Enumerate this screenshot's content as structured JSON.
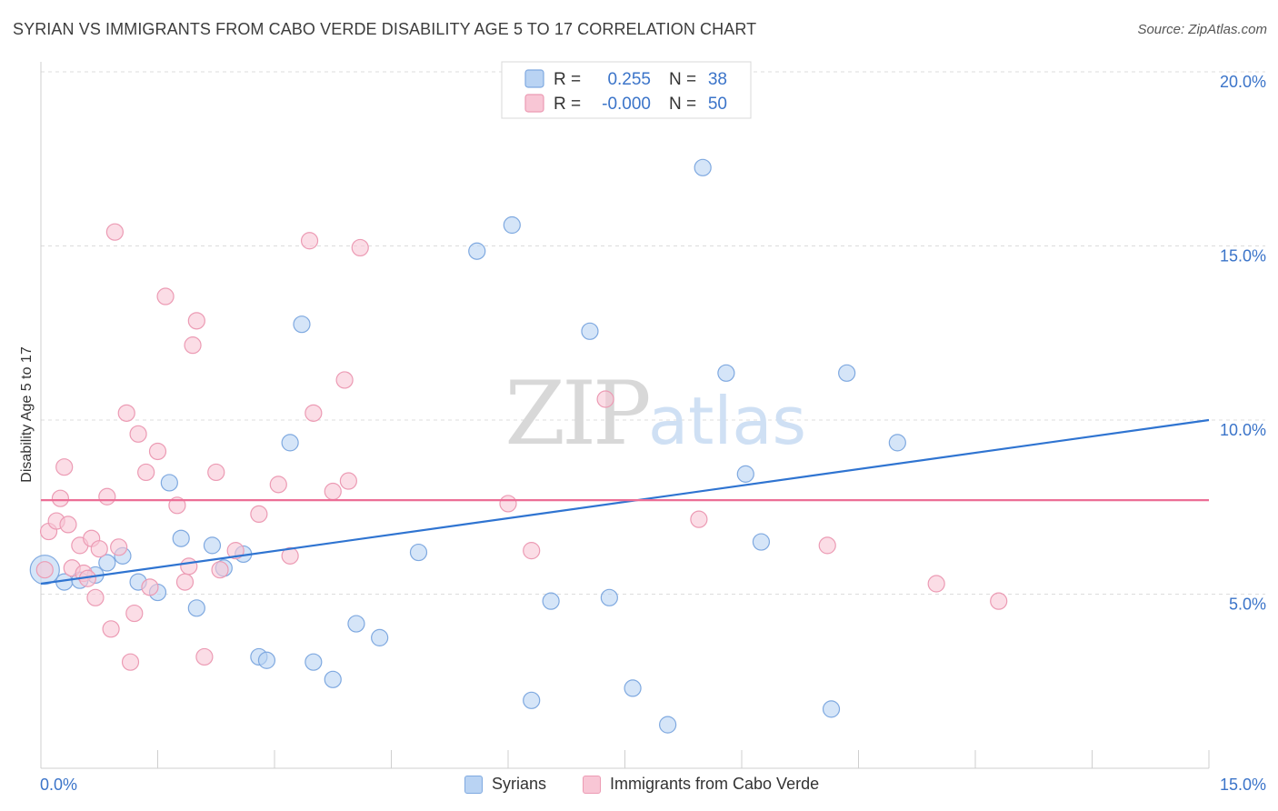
{
  "title": "SYRIAN VS IMMIGRANTS FROM CABO VERDE DISABILITY AGE 5 TO 17 CORRELATION CHART",
  "source": "Source: ZipAtlas.com",
  "watermark": {
    "zip": "ZIP",
    "atlas": "atlas"
  },
  "colors": {
    "blue_fill": "#b9d3f3",
    "blue_edge": "#7fa9e0",
    "blue_line": "#2f74d1",
    "pink_fill": "#f8c6d5",
    "pink_edge": "#ec9bb4",
    "pink_line": "#ec6e96",
    "axis_text": "#3b74c9",
    "grid": "#dcdcdc"
  },
  "legend_top": {
    "rows": [
      {
        "r_label": "R = ",
        "r_value": "0.255",
        "n_label": "N = ",
        "n_value": "38"
      },
      {
        "r_label": "R = ",
        "r_value": "-0.000",
        "n_label": "N = ",
        "n_value": "50"
      }
    ]
  },
  "chart_data": {
    "type": "scatter",
    "title": "SYRIAN VS IMMIGRANTS FROM CABO VERDE DISABILITY AGE 5 TO 17 CORRELATION CHART",
    "xlabel": "",
    "ylabel": "Disability Age 5 to 17",
    "xlim": [
      0,
      15
    ],
    "ylim": [
      0,
      20
    ],
    "x_tick_labels": [
      "0.0%",
      "15.0%"
    ],
    "y_ticks": [
      5,
      10,
      15,
      20
    ],
    "y_tick_labels": [
      "5.0%",
      "10.0%",
      "15.0%",
      "20.0%"
    ],
    "grid": "horizontal dashed",
    "series": [
      {
        "name": "Syrians",
        "r": 0.255,
        "n": 38,
        "trend": {
          "x": [
            0,
            15
          ],
          "y": [
            5.3,
            10.0
          ]
        },
        "points": [
          [
            0.05,
            5.7,
            16
          ],
          [
            0.3,
            5.35,
            9
          ],
          [
            0.5,
            5.4,
            9
          ],
          [
            0.7,
            5.55,
            9
          ],
          [
            0.85,
            5.9,
            9
          ],
          [
            1.05,
            6.1,
            9
          ],
          [
            1.25,
            5.35,
            9
          ],
          [
            1.5,
            5.05,
            9
          ],
          [
            1.65,
            8.2,
            9
          ],
          [
            1.8,
            6.6,
            9
          ],
          [
            2.0,
            4.6,
            9
          ],
          [
            2.2,
            6.4,
            9
          ],
          [
            2.35,
            5.75,
            9
          ],
          [
            2.6,
            6.15,
            9
          ],
          [
            2.8,
            3.2,
            9
          ],
          [
            2.9,
            3.1,
            9
          ],
          [
            3.2,
            9.35,
            9
          ],
          [
            3.35,
            12.75,
            9
          ],
          [
            3.5,
            3.05,
            9
          ],
          [
            3.75,
            2.55,
            9
          ],
          [
            4.05,
            4.15,
            9
          ],
          [
            4.35,
            3.75,
            9
          ],
          [
            4.85,
            6.2,
            9
          ],
          [
            5.6,
            14.85,
            9
          ],
          [
            6.05,
            15.6,
            9
          ],
          [
            6.3,
            1.95,
            9
          ],
          [
            6.55,
            4.8,
            9
          ],
          [
            7.05,
            12.55,
            9
          ],
          [
            7.3,
            4.9,
            9
          ],
          [
            7.6,
            2.3,
            9
          ],
          [
            8.05,
            1.25,
            9
          ],
          [
            8.5,
            17.25,
            9
          ],
          [
            8.8,
            11.35,
            9
          ],
          [
            9.05,
            8.45,
            9
          ],
          [
            9.25,
            6.5,
            9
          ],
          [
            10.15,
            1.7,
            9
          ],
          [
            10.35,
            11.35,
            9
          ],
          [
            11.0,
            9.35,
            9
          ]
        ]
      },
      {
        "name": "Immigrants from Cabo Verde",
        "r": -0.0,
        "n": 50,
        "trend": {
          "x": [
            0,
            15
          ],
          "y": [
            7.7,
            7.7
          ]
        },
        "points": [
          [
            0.05,
            5.7,
            9
          ],
          [
            0.1,
            6.8,
            9
          ],
          [
            0.2,
            7.1,
            9
          ],
          [
            0.25,
            7.75,
            9
          ],
          [
            0.3,
            8.65,
            9
          ],
          [
            0.35,
            7.0,
            9
          ],
          [
            0.4,
            5.75,
            9
          ],
          [
            0.5,
            6.4,
            9
          ],
          [
            0.55,
            5.6,
            9
          ],
          [
            0.6,
            5.45,
            9
          ],
          [
            0.65,
            6.6,
            9
          ],
          [
            0.7,
            4.9,
            9
          ],
          [
            0.75,
            6.3,
            9
          ],
          [
            0.85,
            7.8,
            9
          ],
          [
            0.9,
            4.0,
            9
          ],
          [
            0.95,
            15.4,
            9
          ],
          [
            1.0,
            6.35,
            9
          ],
          [
            1.1,
            10.2,
            9
          ],
          [
            1.15,
            3.05,
            9
          ],
          [
            1.2,
            4.45,
            9
          ],
          [
            1.25,
            9.6,
            9
          ],
          [
            1.35,
            8.5,
            9
          ],
          [
            1.4,
            5.2,
            9
          ],
          [
            1.5,
            9.1,
            9
          ],
          [
            1.6,
            13.55,
            9
          ],
          [
            1.75,
            7.55,
            9
          ],
          [
            1.85,
            5.35,
            9
          ],
          [
            1.9,
            5.8,
            9
          ],
          [
            1.95,
            12.15,
            9
          ],
          [
            2.0,
            12.85,
            9
          ],
          [
            2.1,
            3.2,
            9
          ],
          [
            2.25,
            8.5,
            9
          ],
          [
            2.3,
            5.7,
            9
          ],
          [
            2.5,
            6.25,
            9
          ],
          [
            2.8,
            7.3,
            9
          ],
          [
            3.05,
            8.15,
            9
          ],
          [
            3.2,
            6.1,
            9
          ],
          [
            3.45,
            15.15,
            9
          ],
          [
            3.5,
            10.2,
            9
          ],
          [
            3.75,
            7.95,
            9
          ],
          [
            3.9,
            11.15,
            9
          ],
          [
            3.95,
            8.25,
            9
          ],
          [
            4.1,
            14.95,
            9
          ],
          [
            6.0,
            7.6,
            9
          ],
          [
            6.3,
            6.25,
            9
          ],
          [
            7.25,
            10.6,
            9
          ],
          [
            8.45,
            7.15,
            9
          ],
          [
            10.1,
            6.4,
            9
          ],
          [
            11.5,
            5.3,
            9
          ],
          [
            12.3,
            4.8,
            9
          ]
        ]
      }
    ]
  }
}
